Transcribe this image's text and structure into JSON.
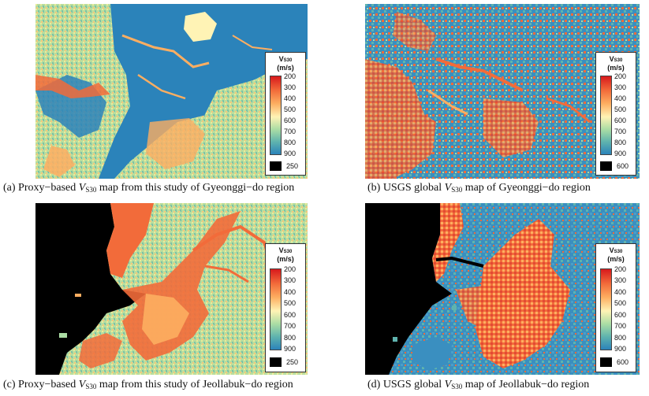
{
  "panels": [
    {
      "id": "a",
      "caption_prefix": "(a) Proxy−based ",
      "caption_vs": "V",
      "caption_sub": "S30",
      "caption_suffix": " map from this study of Gyeonggi−do region",
      "legend": {
        "title": "V",
        "title_sub": "S30",
        "unit": "(m/s)",
        "ticks": [
          "200",
          "300",
          "400",
          "500",
          "600",
          "700",
          "800",
          "900"
        ],
        "nodata_label": "250"
      }
    },
    {
      "id": "b",
      "caption_prefix": "(b) USGS global ",
      "caption_vs": "V",
      "caption_sub": "S30",
      "caption_suffix": " map of Gyeonggi−do region",
      "legend": {
        "title": "V",
        "title_sub": "S30",
        "unit": "(m/s)",
        "ticks": [
          "200",
          "300",
          "400",
          "500",
          "600",
          "700",
          "800",
          "900"
        ],
        "nodata_label": "600"
      }
    },
    {
      "id": "c",
      "caption_prefix": "(c) Proxy−based ",
      "caption_vs": "V",
      "caption_sub": "S30",
      "caption_suffix": " map from this study of Jeollabuk−do region",
      "legend": {
        "title": "V",
        "title_sub": "S30",
        "unit": "(m/s)",
        "ticks": [
          "200",
          "300",
          "400",
          "500",
          "600",
          "700",
          "800",
          "900"
        ],
        "nodata_label": "250"
      }
    },
    {
      "id": "d",
      "caption_prefix": "(d) USGS global ",
      "caption_vs": "V",
      "caption_sub": "S30",
      "caption_suffix": " map of Jeollabuk−do region",
      "legend": {
        "title": "V",
        "title_sub": "S30",
        "unit": "(m/s)",
        "ticks": [
          "200",
          "300",
          "400",
          "500",
          "600",
          "700",
          "800",
          "900"
        ],
        "nodata_label": "600"
      }
    }
  ],
  "colors": {
    "fast": "#2b83ba",
    "mid_fast": "#5fb3ae",
    "mid": "#abdda4",
    "neutral": "#fff3b5",
    "mid_slow": "#fdae61",
    "slow": "#f26b3a",
    "slowest": "#d7191c",
    "nodata": "#000000"
  }
}
